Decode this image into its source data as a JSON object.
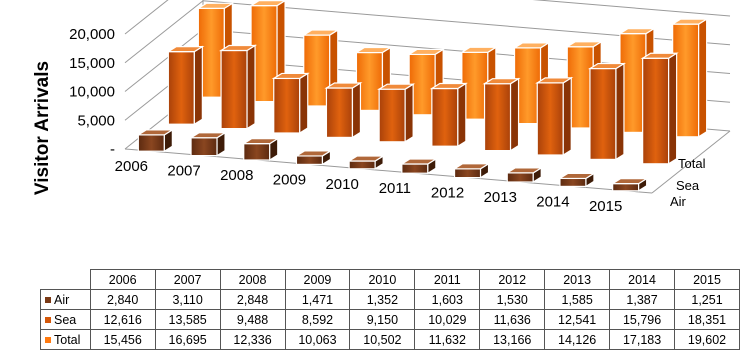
{
  "chart_data": {
    "type": "bar",
    "ylabel": "Visitor Arrivals",
    "categories": [
      "2006",
      "2007",
      "2008",
      "2009",
      "2010",
      "2011",
      "2012",
      "2013",
      "2014",
      "2015"
    ],
    "series": [
      {
        "name": "Air",
        "values": [
          2840,
          3110,
          2848,
          1471,
          1352,
          1603,
          1530,
          1585,
          1387,
          1251
        ],
        "color": "#7a3a16"
      },
      {
        "name": "Sea",
        "values": [
          12616,
          13585,
          9488,
          8592,
          9150,
          10029,
          11636,
          12541,
          15796,
          18351
        ],
        "color": "#d4580a"
      },
      {
        "name": "Total",
        "values": [
          15456,
          16695,
          12336,
          10063,
          10502,
          11632,
          13166,
          14126,
          17183,
          19602
        ],
        "color": "#ff7a10"
      }
    ],
    "ylim": [
      0,
      20000
    ],
    "yticks": [
      "-",
      "5,000",
      "10,000",
      "15,000",
      "20,000"
    ],
    "grid": true
  },
  "table": {
    "rows": [
      {
        "label": "Air",
        "color": "#7a3a16",
        "values": [
          "2,840",
          "3,110",
          "2,848",
          "1,471",
          "1,352",
          "1,603",
          "1,530",
          "1,585",
          "1,387",
          "1,251"
        ]
      },
      {
        "label": "Sea",
        "color": "#d4580a",
        "values": [
          "12,616",
          "13,585",
          "9,488",
          "8,592",
          "9,150",
          "10,029",
          "11,636",
          "12,541",
          "15,796",
          "18,351"
        ]
      },
      {
        "label": "Total",
        "color": "#ff7a10",
        "values": [
          "15,456",
          "16,695",
          "12,336",
          "10,063",
          "10,502",
          "11,632",
          "13,166",
          "14,126",
          "17,183",
          "19,602"
        ]
      }
    ]
  }
}
